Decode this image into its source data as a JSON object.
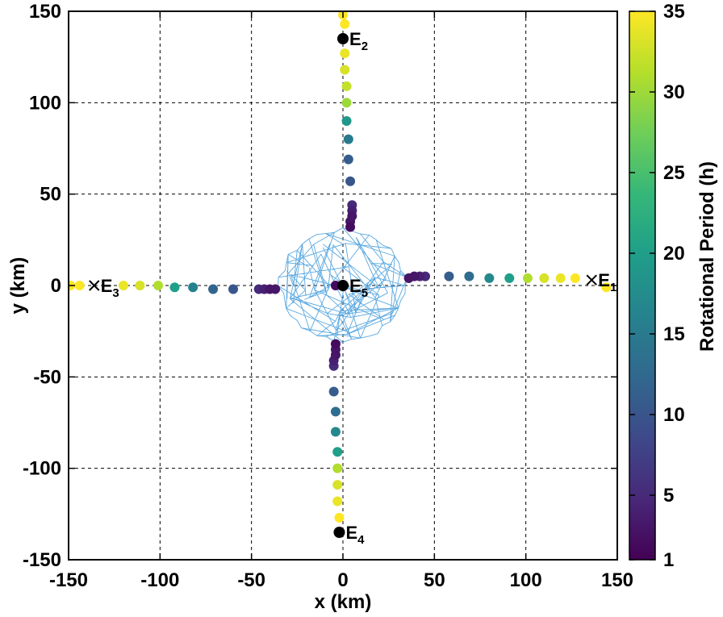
{
  "chart_data": {
    "type": "scatter",
    "xlabel": "x (km)",
    "ylabel": "y (km)",
    "xlim": [
      -150,
      150
    ],
    "ylim": [
      -150,
      150
    ],
    "xticks": [
      -150,
      -100,
      -50,
      0,
      50,
      100,
      150
    ],
    "yticks": [
      -150,
      -100,
      -50,
      0,
      50,
      100,
      150
    ],
    "grid": true,
    "colorbar": {
      "label": "Rotational Period (h)",
      "min": 1,
      "max": 35,
      "ticks": [
        1,
        5,
        10,
        15,
        20,
        25,
        30,
        35
      ],
      "colormap": [
        "#440154",
        "#482878",
        "#3e4989",
        "#31688e",
        "#26828e",
        "#1f9e89",
        "#35b779",
        "#6ece58",
        "#b5de2b",
        "#fde725"
      ]
    },
    "body_color": "#5aa8e0",
    "series": [
      {
        "points": [
          {
            "x": 0,
            "y": 148,
            "p": 35
          },
          {
            "x": 1,
            "y": 143,
            "p": 35
          },
          {
            "x": 1,
            "y": 127,
            "p": 34
          },
          {
            "x": 1,
            "y": 118,
            "p": 33
          },
          {
            "x": 2,
            "y": 109,
            "p": 32
          },
          {
            "x": 2,
            "y": 100,
            "p": 30
          },
          {
            "x": 2,
            "y": 90,
            "p": 19
          },
          {
            "x": 3,
            "y": 80,
            "p": 15
          },
          {
            "x": 3,
            "y": 69,
            "p": 11
          },
          {
            "x": 4,
            "y": 57,
            "p": 10
          },
          {
            "x": 5,
            "y": 44,
            "p": 5
          },
          {
            "x": 5,
            "y": 41,
            "p": 4
          },
          {
            "x": 5,
            "y": 38,
            "p": 3
          },
          {
            "x": 4,
            "y": 35,
            "p": 3
          },
          {
            "x": 4,
            "y": 32,
            "p": 2
          },
          {
            "x": -2,
            "y": -127,
            "p": 35
          },
          {
            "x": -3,
            "y": -118,
            "p": 34
          },
          {
            "x": -3,
            "y": -109,
            "p": 33
          },
          {
            "x": -3,
            "y": -100,
            "p": 31
          },
          {
            "x": -3,
            "y": -91,
            "p": 20
          },
          {
            "x": -4,
            "y": -80,
            "p": 17
          },
          {
            "x": -4,
            "y": -69,
            "p": 13
          },
          {
            "x": -5,
            "y": -58,
            "p": 11
          },
          {
            "x": -5,
            "y": -44,
            "p": 5
          },
          {
            "x": -5,
            "y": -41,
            "p": 4
          },
          {
            "x": -4,
            "y": -38,
            "p": 3
          },
          {
            "x": -4,
            "y": -35,
            "p": 3
          },
          {
            "x": -4,
            "y": -32,
            "p": 2
          },
          {
            "x": -149,
            "y": 0,
            "p": 35
          },
          {
            "x": -144,
            "y": 0,
            "p": 35
          },
          {
            "x": -120,
            "y": 0,
            "p": 34
          },
          {
            "x": -111,
            "y": 0,
            "p": 33
          },
          {
            "x": -101,
            "y": 0,
            "p": 31
          },
          {
            "x": -92,
            "y": -1,
            "p": 20
          },
          {
            "x": -82,
            "y": -1,
            "p": 16
          },
          {
            "x": -71,
            "y": -2,
            "p": 12
          },
          {
            "x": -60,
            "y": -2,
            "p": 10
          },
          {
            "x": -46,
            "y": -2,
            "p": 5
          },
          {
            "x": -43,
            "y": -2,
            "p": 4
          },
          {
            "x": -40,
            "y": -2,
            "p": 3
          },
          {
            "x": -37,
            "y": -2,
            "p": 3
          },
          {
            "x": -4,
            "y": 0,
            "p": 2
          },
          {
            "x": 144,
            "y": -1,
            "p": 35
          },
          {
            "x": 127,
            "y": 4,
            "p": 35
          },
          {
            "x": 119,
            "y": 4,
            "p": 34
          },
          {
            "x": 110,
            "y": 4,
            "p": 33
          },
          {
            "x": 101,
            "y": 4,
            "p": 31
          },
          {
            "x": 91,
            "y": 4,
            "p": 20
          },
          {
            "x": 80,
            "y": 4,
            "p": 17
          },
          {
            "x": 69,
            "y": 5,
            "p": 13
          },
          {
            "x": 58,
            "y": 5,
            "p": 11
          },
          {
            "x": 45,
            "y": 5,
            "p": 5
          },
          {
            "x": 42,
            "y": 5,
            "p": 4
          },
          {
            "x": 39,
            "y": 5,
            "p": 3
          },
          {
            "x": 36,
            "y": 4,
            "p": 3
          }
        ]
      }
    ],
    "equilibria": [
      {
        "label": "E",
        "sub": "1",
        "x": 136,
        "y": 3,
        "marker": "x"
      },
      {
        "label": "E",
        "sub": "2",
        "x": 0,
        "y": 135,
        "marker": "dot"
      },
      {
        "label": "E",
        "sub": "3",
        "x": -136,
        "y": 0,
        "marker": "x"
      },
      {
        "label": "E",
        "sub": "4",
        "x": -2,
        "y": -135,
        "marker": "dot"
      },
      {
        "label": "E",
        "sub": "5",
        "x": 0,
        "y": 0,
        "marker": "dot"
      }
    ]
  }
}
